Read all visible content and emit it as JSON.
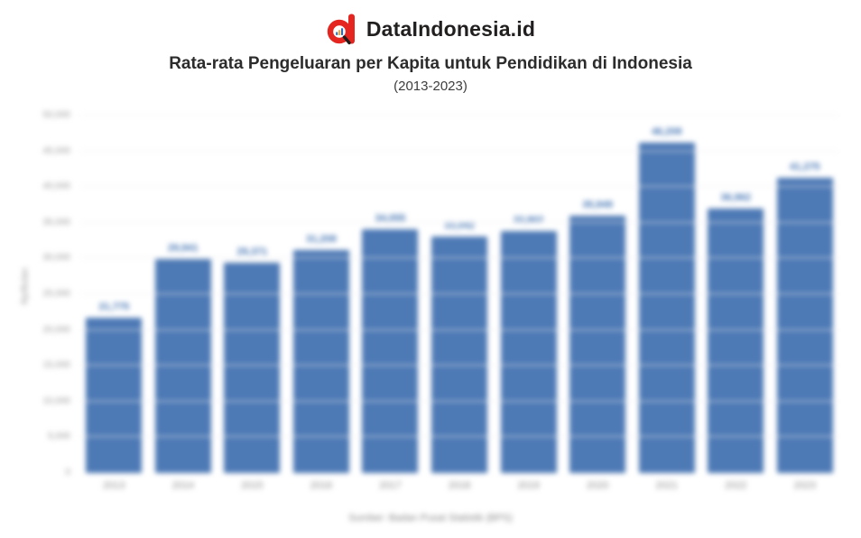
{
  "header": {
    "brand": "DataIndonesia.id",
    "title": "Rata-rata Pengeluaran per Kapita untuk Pendidikan di Indonesia",
    "subtitle": "(2013-2023)"
  },
  "colors": {
    "bar": "#4d79b5",
    "bar_value_label": "#4273b3",
    "logo_red": "#e52620",
    "gridline": "#f0f0f0",
    "axis_text": "#9a9a9a"
  },
  "chart_data": {
    "type": "bar",
    "title": "Rata-rata Pengeluaran per Kapita untuk Pendidikan di Indonesia",
    "subtitle": "(2013-2023)",
    "categories": [
      "2013",
      "2014",
      "2015",
      "2016",
      "2017",
      "2018",
      "2019",
      "2020",
      "2021",
      "2022",
      "2023"
    ],
    "values": [
      21775,
      29941,
      29371,
      31208,
      34055,
      33042,
      33802,
      35949,
      46208,
      36962,
      41275
    ],
    "value_labels": [
      "21,775",
      "29,941",
      "29,371",
      "31,208",
      "34,055",
      "33,042",
      "33,802",
      "35,949",
      "46,208",
      "36,962",
      "41,275"
    ],
    "xlabel": "",
    "ylabel": "Rp/Bulan",
    "ylim": [
      0,
      50000
    ],
    "ytick_values": [
      0,
      5000,
      10000,
      15000,
      20000,
      25000,
      30000,
      35000,
      40000,
      45000,
      50000
    ],
    "ytick_labels": [
      "0",
      "5,000",
      "10,000",
      "15,000",
      "20,000",
      "25,000",
      "30,000",
      "35,000",
      "40,000",
      "45,000",
      "50,000"
    ],
    "grid": true,
    "legend": false,
    "source": "Sumber: Badan Pusat Statistik (BPS)"
  }
}
